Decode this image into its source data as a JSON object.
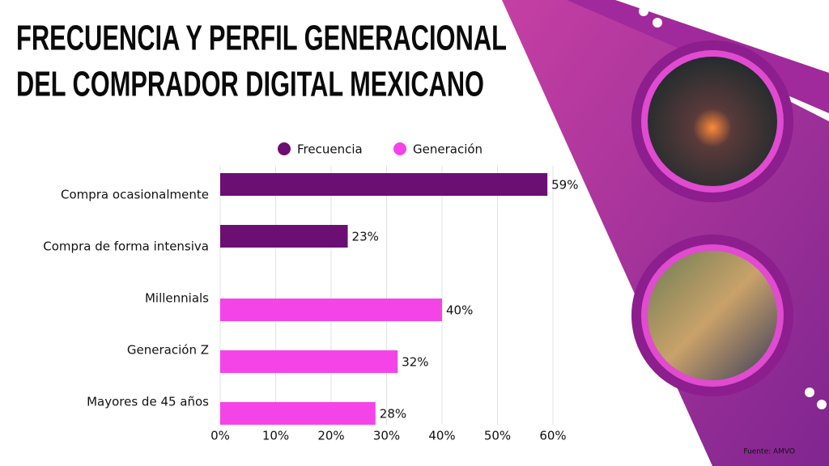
{
  "chart_data": {
    "type": "bar",
    "orientation": "horizontal",
    "title": [
      "FRECUENCIA Y PERFIL GENERACIONAL",
      "DEL COMPRADOR DIGITAL MEXICANO"
    ],
    "categories": [
      "Compra ocasionalmente",
      "Compra de forma intensiva",
      "Millennials",
      "Generación Z",
      "Mayores de 45 años"
    ],
    "series": [
      {
        "name": "Frecuencia",
        "color": "#6b0f72",
        "values": [
          59,
          23,
          null,
          null,
          null
        ],
        "value_labels": [
          "59%",
          "23%",
          null,
          null,
          null
        ]
      },
      {
        "name": "Generación",
        "color": "#f444e8",
        "values": [
          null,
          null,
          40,
          32,
          28
        ],
        "value_labels": [
          null,
          null,
          "40%",
          "32%",
          "28%"
        ]
      }
    ],
    "xlim": [
      0,
      60
    ],
    "xticks": [
      {
        "value": 0,
        "label": "0%"
      },
      {
        "value": 10,
        "label": "10%"
      },
      {
        "value": 20,
        "label": "20%"
      },
      {
        "value": 30,
        "label": "30%"
      },
      {
        "value": 40,
        "label": "40%"
      },
      {
        "value": 50,
        "label": "50%"
      },
      {
        "value": 60,
        "label": "60%"
      }
    ],
    "grid": true,
    "legend": "top",
    "source": "Fuente: AMVO"
  }
}
